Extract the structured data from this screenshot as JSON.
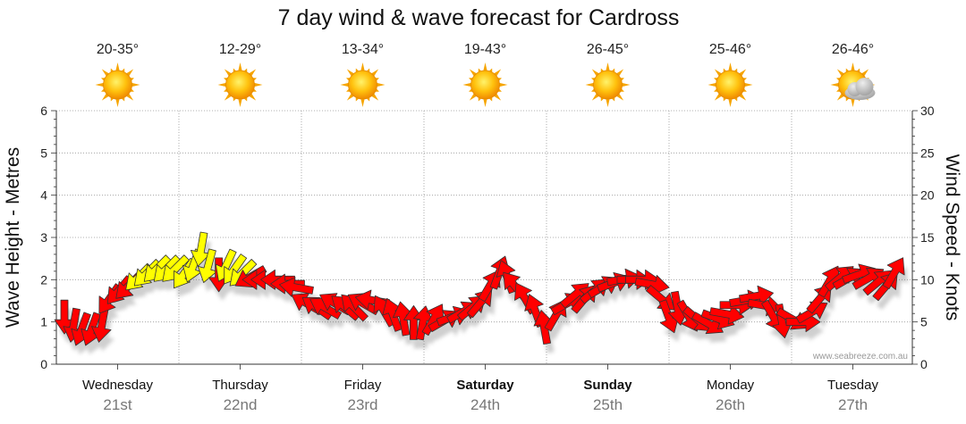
{
  "title": "7 day wind & wave forecast for Cardross",
  "left_axis_label": "Wave Height - Metres",
  "right_axis_label": "Wind Speed - Knots",
  "credit": "www.seabreeze.com.au",
  "days": [
    {
      "name": "Wednesday",
      "date": "21st",
      "temp": "20-35°",
      "icon": "sun-icon",
      "bold": false
    },
    {
      "name": "Thursday",
      "date": "22nd",
      "temp": "12-29°",
      "icon": "sun-icon",
      "bold": false
    },
    {
      "name": "Friday",
      "date": "23rd",
      "temp": "13-34°",
      "icon": "sun-icon",
      "bold": false
    },
    {
      "name": "Saturday",
      "date": "24th",
      "temp": "19-43°",
      "icon": "sun-icon",
      "bold": true
    },
    {
      "name": "Sunday",
      "date": "25th",
      "temp": "26-45°",
      "icon": "sun-icon",
      "bold": true
    },
    {
      "name": "Monday",
      "date": "26th",
      "temp": "25-46°",
      "icon": "sun-icon",
      "bold": false
    },
    {
      "name": "Tuesday",
      "date": "27th",
      "temp": "26-46°",
      "icon": "partly-cloudy-icon",
      "bold": false
    }
  ],
  "colors": {
    "strong_wind": "#ff0000",
    "moderate_wind": "#ffff00",
    "arrow_outline": "#333333",
    "grid": "#999999"
  },
  "chart_data": {
    "type": "line",
    "title": "7 day wind & wave forecast for Cardross",
    "left_axis": {
      "label": "Wave Height - Metres",
      "range": [
        0,
        6
      ],
      "ticks": [
        0,
        1,
        2,
        3,
        4,
        5,
        6
      ]
    },
    "right_axis": {
      "label": "Wind Speed - Knots",
      "range": [
        0,
        30
      ],
      "ticks": [
        0,
        5,
        10,
        15,
        20,
        25,
        30
      ]
    },
    "x_unit": "days from start of Wednesday 21st",
    "series": [
      {
        "name": "Wind Speed - Knots",
        "marker": "wind-arrow",
        "points": [
          {
            "x": 0.0,
            "y": 6,
            "dir": 180,
            "c": "r"
          },
          {
            "x": 0.08,
            "y": 5,
            "dir": 190,
            "c": "r"
          },
          {
            "x": 0.15,
            "y": 4.5,
            "dir": 200,
            "c": "r"
          },
          {
            "x": 0.23,
            "y": 4.5,
            "dir": 200,
            "c": "r"
          },
          {
            "x": 0.31,
            "y": 5,
            "dir": 190,
            "c": "r"
          },
          {
            "x": 0.38,
            "y": 8,
            "dir": 215,
            "c": "r"
          },
          {
            "x": 0.46,
            "y": 9,
            "dir": 220,
            "c": "r"
          },
          {
            "x": 0.54,
            "y": 9.5,
            "dir": 225,
            "c": "r"
          },
          {
            "x": 0.62,
            "y": 10.5,
            "dir": 225,
            "c": "y"
          },
          {
            "x": 0.69,
            "y": 11,
            "dir": 225,
            "c": "y"
          },
          {
            "x": 0.77,
            "y": 11.5,
            "dir": 225,
            "c": "y"
          },
          {
            "x": 0.85,
            "y": 11.5,
            "dir": 225,
            "c": "y"
          },
          {
            "x": 0.92,
            "y": 11.5,
            "dir": 225,
            "c": "y"
          },
          {
            "x": 0.99,
            "y": 11,
            "dir": 215,
            "c": "y"
          },
          {
            "x": 1.06,
            "y": 12,
            "dir": 200,
            "c": "y"
          },
          {
            "x": 1.12,
            "y": 14,
            "dir": 190,
            "c": "y"
          },
          {
            "x": 1.18,
            "y": 12,
            "dir": 195,
            "c": "y"
          },
          {
            "x": 1.26,
            "y": 11,
            "dir": 180,
            "c": "r"
          },
          {
            "x": 1.33,
            "y": 12,
            "dir": 205,
            "c": "y"
          },
          {
            "x": 1.4,
            "y": 11.5,
            "dir": 215,
            "c": "y"
          },
          {
            "x": 1.47,
            "y": 11,
            "dir": 225,
            "c": "y"
          },
          {
            "x": 1.54,
            "y": 10.5,
            "dir": 240,
            "c": "r"
          },
          {
            "x": 1.62,
            "y": 10,
            "dir": 270,
            "c": "r"
          },
          {
            "x": 1.69,
            "y": 10,
            "dir": 270,
            "c": "r"
          },
          {
            "x": 1.77,
            "y": 10,
            "dir": 270,
            "c": "r"
          },
          {
            "x": 1.85,
            "y": 9.5,
            "dir": 270,
            "c": "r"
          },
          {
            "x": 1.92,
            "y": 9,
            "dir": 280,
            "c": "r"
          },
          {
            "x": 2.0,
            "y": 7,
            "dir": 300,
            "c": "r"
          },
          {
            "x": 2.08,
            "y": 6.5,
            "dir": 305,
            "c": "r"
          },
          {
            "x": 2.15,
            "y": 6.5,
            "dir": 300,
            "c": "r"
          },
          {
            "x": 2.23,
            "y": 7,
            "dir": 300,
            "c": "r"
          },
          {
            "x": 2.31,
            "y": 6.5,
            "dir": 310,
            "c": "r"
          },
          {
            "x": 2.38,
            "y": 6.5,
            "dir": 315,
            "c": "r"
          },
          {
            "x": 2.46,
            "y": 7,
            "dir": 300,
            "c": "r"
          },
          {
            "x": 2.54,
            "y": 7.5,
            "dir": 280,
            "c": "r"
          },
          {
            "x": 2.62,
            "y": 6,
            "dir": 330,
            "c": "r"
          },
          {
            "x": 2.69,
            "y": 5.5,
            "dir": 340,
            "c": "r"
          },
          {
            "x": 2.77,
            "y": 5,
            "dir": 350,
            "c": "r"
          },
          {
            "x": 2.85,
            "y": 4.5,
            "dir": 0,
            "c": "r"
          },
          {
            "x": 2.92,
            "y": 4.5,
            "dir": 10,
            "c": "r"
          },
          {
            "x": 3.0,
            "y": 5,
            "dir": 30,
            "c": "r"
          },
          {
            "x": 3.08,
            "y": 5,
            "dir": 60,
            "c": "r"
          },
          {
            "x": 3.15,
            "y": 5.5,
            "dir": 70,
            "c": "r"
          },
          {
            "x": 3.23,
            "y": 6,
            "dir": 60,
            "c": "r"
          },
          {
            "x": 3.31,
            "y": 6.5,
            "dir": 50,
            "c": "r"
          },
          {
            "x": 3.38,
            "y": 7,
            "dir": 40,
            "c": "r"
          },
          {
            "x": 3.46,
            "y": 9,
            "dir": 30,
            "c": "r"
          },
          {
            "x": 3.54,
            "y": 10.5,
            "dir": 20,
            "c": "r"
          },
          {
            "x": 3.62,
            "y": 10,
            "dir": 340,
            "c": "r"
          },
          {
            "x": 3.69,
            "y": 9,
            "dir": 320,
            "c": "r"
          },
          {
            "x": 3.77,
            "y": 7.5,
            "dir": 330,
            "c": "r"
          },
          {
            "x": 3.85,
            "y": 6,
            "dir": 340,
            "c": "r"
          },
          {
            "x": 3.92,
            "y": 4,
            "dir": 350,
            "c": "r"
          },
          {
            "x": 4.0,
            "y": 5.5,
            "dir": 30,
            "c": "r"
          },
          {
            "x": 4.08,
            "y": 7,
            "dir": 60,
            "c": "r"
          },
          {
            "x": 4.15,
            "y": 8,
            "dir": 50,
            "c": "r"
          },
          {
            "x": 4.23,
            "y": 7.5,
            "dir": 40,
            "c": "r"
          },
          {
            "x": 4.31,
            "y": 8.5,
            "dir": 50,
            "c": "r"
          },
          {
            "x": 4.38,
            "y": 9,
            "dir": 60,
            "c": "r"
          },
          {
            "x": 4.46,
            "y": 9.5,
            "dir": 70,
            "c": "r"
          },
          {
            "x": 4.54,
            "y": 10,
            "dir": 80,
            "c": "r"
          },
          {
            "x": 4.62,
            "y": 10,
            "dir": 90,
            "c": "r"
          },
          {
            "x": 4.69,
            "y": 10,
            "dir": 90,
            "c": "r"
          },
          {
            "x": 4.77,
            "y": 9.5,
            "dir": 100,
            "c": "r"
          },
          {
            "x": 4.85,
            "y": 8,
            "dir": 130,
            "c": "r"
          },
          {
            "x": 4.92,
            "y": 6,
            "dir": 160,
            "c": "r"
          },
          {
            "x": 5.0,
            "y": 7,
            "dir": 170,
            "c": "r"
          },
          {
            "x": 5.08,
            "y": 6,
            "dir": 150,
            "c": "r"
          },
          {
            "x": 5.15,
            "y": 5.5,
            "dir": 130,
            "c": "r"
          },
          {
            "x": 5.23,
            "y": 5,
            "dir": 120,
            "c": "r"
          },
          {
            "x": 5.31,
            "y": 5.5,
            "dir": 110,
            "c": "r"
          },
          {
            "x": 5.38,
            "y": 6,
            "dir": 100,
            "c": "r"
          },
          {
            "x": 5.46,
            "y": 7,
            "dir": 90,
            "c": "r"
          },
          {
            "x": 5.54,
            "y": 7.5,
            "dir": 80,
            "c": "r"
          },
          {
            "x": 5.62,
            "y": 8,
            "dir": 80,
            "c": "r"
          },
          {
            "x": 5.69,
            "y": 7,
            "dir": 100,
            "c": "r"
          },
          {
            "x": 5.77,
            "y": 6,
            "dir": 150,
            "c": "r"
          },
          {
            "x": 5.85,
            "y": 5.5,
            "dir": 170,
            "c": "r"
          },
          {
            "x": 5.92,
            "y": 5.5,
            "dir": 120,
            "c": "r"
          },
          {
            "x": 6.0,
            "y": 5,
            "dir": 90,
            "c": "r"
          },
          {
            "x": 6.08,
            "y": 6,
            "dir": 60,
            "c": "r"
          },
          {
            "x": 6.15,
            "y": 7.5,
            "dir": 40,
            "c": "r"
          },
          {
            "x": 6.23,
            "y": 9.5,
            "dir": 30,
            "c": "r"
          },
          {
            "x": 6.31,
            "y": 10,
            "dir": 50,
            "c": "r"
          },
          {
            "x": 6.38,
            "y": 10,
            "dir": 60,
            "c": "r"
          },
          {
            "x": 6.46,
            "y": 10.5,
            "dir": 70,
            "c": "r"
          },
          {
            "x": 6.54,
            "y": 10,
            "dir": 60,
            "c": "r"
          },
          {
            "x": 6.62,
            "y": 9.5,
            "dir": 50,
            "c": "r"
          },
          {
            "x": 6.69,
            "y": 9,
            "dir": 40,
            "c": "r"
          },
          {
            "x": 6.76,
            "y": 10.5,
            "dir": 30,
            "c": "r"
          }
        ]
      }
    ]
  }
}
